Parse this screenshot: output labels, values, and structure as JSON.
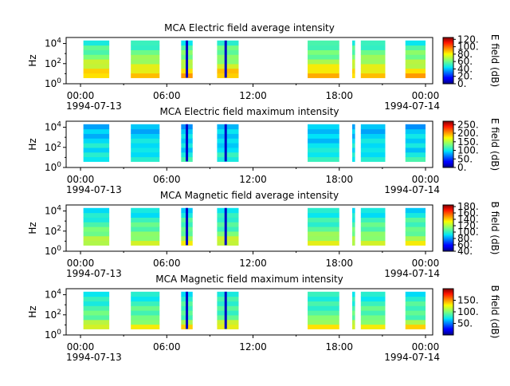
{
  "chart_data": [
    {
      "type": "heatmap",
      "title": "MCA  Electric field average intensity",
      "ylabel": "Hz",
      "yticks": [
        "10^0",
        "10^2",
        "10^4"
      ],
      "ylim_exp": [
        0,
        4.6
      ],
      "xticks": [
        "00:00",
        "06:00",
        "12:00",
        "18:00",
        "00:00"
      ],
      "xdates": [
        "1994-07-13",
        "1994-07-14"
      ],
      "xlim_hours": [
        -1,
        24.5
      ],
      "colorbar": {
        "label": "E field (dB)",
        "ticks": [
          "120.",
          "100.",
          "80.",
          "60.",
          "40.",
          "20.",
          "0."
        ],
        "range": [
          0,
          125
        ]
      },
      "profile": "e-avg",
      "segments": [
        [
          0.2,
          2
        ],
        [
          3.5,
          5.5
        ],
        [
          7,
          7.8
        ],
        [
          9.5,
          11
        ],
        [
          15.8,
          18
        ],
        [
          18.9,
          19.1
        ],
        [
          19.5,
          21.2
        ],
        [
          22.6,
          24
        ]
      ],
      "dropouts": [
        7.4,
        10.1
      ]
    },
    {
      "type": "heatmap",
      "title": "MCA  Electric field maximum intensity",
      "ylabel": "Hz",
      "yticks": [
        "10^0",
        "10^2",
        "10^4"
      ],
      "ylim_exp": [
        0,
        4.6
      ],
      "xticks": [
        "00:00",
        "06:00",
        "12:00",
        "18:00",
        "00:00"
      ],
      "xdates": [
        "1994-07-13",
        "1994-07-14"
      ],
      "xlim_hours": [
        -1,
        24.5
      ],
      "colorbar": {
        "label": "E field (dB)",
        "ticks": [
          "250.",
          "200.",
          "150.",
          "100.",
          "50.",
          "0."
        ],
        "range": [
          0,
          270
        ]
      },
      "profile": "e-max",
      "segments": [
        [
          0.2,
          2
        ],
        [
          3.5,
          5.5
        ],
        [
          7,
          7.8
        ],
        [
          9.5,
          11
        ],
        [
          15.8,
          18
        ],
        [
          18.9,
          19.1
        ],
        [
          19.5,
          21.2
        ],
        [
          22.6,
          24
        ]
      ],
      "dropouts": [
        7.4,
        10.1
      ]
    },
    {
      "type": "heatmap",
      "title": "MCA  Magnetic field average intensity",
      "ylabel": "Hz",
      "yticks": [
        "10^0",
        "10^2",
        "10^4"
      ],
      "ylim_exp": [
        0,
        4.6
      ],
      "xticks": [
        "00:00",
        "06:00",
        "12:00",
        "18:00",
        "00:00"
      ],
      "xdates": [
        "1994-07-13",
        "1994-07-14"
      ],
      "xlim_hours": [
        -1,
        24.5
      ],
      "colorbar": {
        "label": "B field (dB)",
        "ticks": [
          "180.",
          "160.",
          "140.",
          "120.",
          "100.",
          "80.",
          "60.",
          "40."
        ],
        "range": [
          40,
          185
        ]
      },
      "profile": "b-avg",
      "segments": [
        [
          0.2,
          2
        ],
        [
          3.5,
          5.5
        ],
        [
          7,
          7.8
        ],
        [
          9.5,
          11
        ],
        [
          15.8,
          18
        ],
        [
          18.9,
          19.1
        ],
        [
          19.5,
          21.2
        ],
        [
          22.6,
          24
        ]
      ],
      "dropouts": [
        7.4,
        10.1
      ]
    },
    {
      "type": "heatmap",
      "title": "MCA  Magnetic field maximum intensity",
      "ylabel": "Hz",
      "yticks": [
        "10^0",
        "10^2",
        "10^4"
      ],
      "ylim_exp": [
        0,
        4.6
      ],
      "xticks": [
        "00:00",
        "06:00",
        "12:00",
        "18:00",
        "00:00"
      ],
      "xdates": [
        "1994-07-13",
        "1994-07-14"
      ],
      "xlim_hours": [
        -1,
        24.5
      ],
      "colorbar": {
        "label": "B field (dB)",
        "ticks": [
          "150.",
          "100.",
          "50."
        ],
        "range": [
          0,
          200
        ]
      },
      "profile": "b-max",
      "segments": [
        [
          0.2,
          2
        ],
        [
          3.5,
          5.5
        ],
        [
          7,
          7.8
        ],
        [
          9.5,
          11
        ],
        [
          15.8,
          18
        ],
        [
          18.9,
          19.1
        ],
        [
          19.5,
          21.2
        ],
        [
          22.6,
          24
        ]
      ],
      "dropouts": [
        7.4,
        10.1
      ]
    }
  ]
}
